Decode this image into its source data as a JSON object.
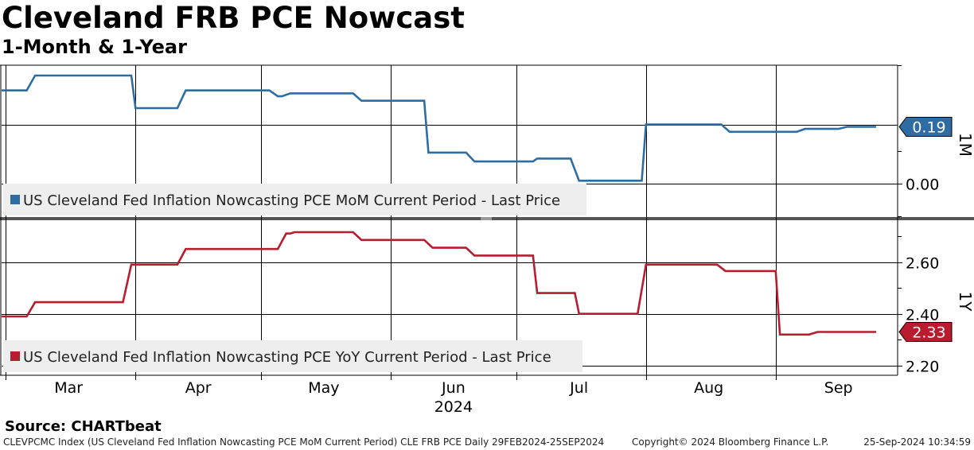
{
  "chart": {
    "title": "Cleveland FRB PCE Nowcast",
    "subtitle": "1-Month & 1-Year",
    "source": "Source: CHARTbeat"
  },
  "footer": {
    "left": "CLEVPCMC Index (US Cleveland Fed Inflation Nowcasting PCE MoM Current Period) CLE FRB PCE  Daily 29FEB2024-25SEP2024",
    "center": "Copyright© 2024 Bloomberg Finance L.P.",
    "right": "25-Sep-2024 10:34:59"
  },
  "colors": {
    "mom": "#2e6da4",
    "yoy": "#b81c2e",
    "grid": "#000000",
    "legend_bg": "#eeeeee"
  },
  "chart_data": [
    {
      "type": "line",
      "panel_label": "1M",
      "legend": "US Cleveland Fed Inflation Nowcasting PCE MoM Current Period - Last Price",
      "last_value_label": "0.19",
      "y_ticks": [
        "0.00"
      ],
      "y_tick_values": [
        0.0
      ],
      "ylim": [
        -0.11,
        0.4
      ],
      "x_start": "2024-02-29",
      "x_end": "2024-09-25",
      "points": [
        [
          "2024-02-29",
          0.315
        ],
        [
          "2024-03-06",
          0.315
        ],
        [
          "2024-03-08",
          0.365
        ],
        [
          "2024-03-31",
          0.365
        ],
        [
          "2024-04-01",
          0.255
        ],
        [
          "2024-04-11",
          0.255
        ],
        [
          "2024-04-13",
          0.315
        ],
        [
          "2024-05-03",
          0.315
        ],
        [
          "2024-05-05",
          0.295
        ],
        [
          "2024-05-06",
          0.295
        ],
        [
          "2024-05-08",
          0.305
        ],
        [
          "2024-05-23",
          0.305
        ],
        [
          "2024-05-25",
          0.28
        ],
        [
          "2024-06-09",
          0.28
        ],
        [
          "2024-06-10",
          0.105
        ],
        [
          "2024-06-19",
          0.105
        ],
        [
          "2024-06-21",
          0.075
        ],
        [
          "2024-07-05",
          0.075
        ],
        [
          "2024-07-06",
          0.085
        ],
        [
          "2024-07-14",
          0.085
        ],
        [
          "2024-07-16",
          0.01
        ],
        [
          "2024-07-31",
          0.01
        ],
        [
          "2024-08-01",
          0.2
        ],
        [
          "2024-08-19",
          0.2
        ],
        [
          "2024-08-21",
          0.175
        ],
        [
          "2024-09-06",
          0.175
        ],
        [
          "2024-09-08",
          0.185
        ],
        [
          "2024-09-16",
          0.185
        ],
        [
          "2024-09-18",
          0.192
        ],
        [
          "2024-09-25",
          0.192
        ]
      ]
    },
    {
      "type": "line",
      "panel_label": "1Y",
      "legend": "US Cleveland Fed Inflation Nowcasting PCE YoY Current Period - Last Price",
      "last_value_label": "2.33",
      "y_ticks": [
        "2.20",
        "2.40",
        "2.60"
      ],
      "y_tick_values": [
        2.2,
        2.4,
        2.6
      ],
      "ylim": [
        2.163,
        2.758
      ],
      "x_start": "2024-02-29",
      "x_end": "2024-09-25",
      "points": [
        [
          "2024-02-29",
          2.39
        ],
        [
          "2024-03-06",
          2.39
        ],
        [
          "2024-03-08",
          2.445
        ],
        [
          "2024-03-29",
          2.445
        ],
        [
          "2024-03-31",
          2.59
        ],
        [
          "2024-04-11",
          2.59
        ],
        [
          "2024-04-13",
          2.65
        ],
        [
          "2024-05-05",
          2.65
        ],
        [
          "2024-05-07",
          2.71
        ],
        [
          "2024-05-08",
          2.71
        ],
        [
          "2024-05-09",
          2.715
        ],
        [
          "2024-05-23",
          2.715
        ],
        [
          "2024-05-25",
          2.685
        ],
        [
          "2024-06-09",
          2.685
        ],
        [
          "2024-06-11",
          2.655
        ],
        [
          "2024-06-19",
          2.655
        ],
        [
          "2024-06-21",
          2.625
        ],
        [
          "2024-07-05",
          2.625
        ],
        [
          "2024-07-06",
          2.48
        ],
        [
          "2024-07-15",
          2.48
        ],
        [
          "2024-07-16",
          2.4
        ],
        [
          "2024-07-30",
          2.4
        ],
        [
          "2024-08-01",
          2.59
        ],
        [
          "2024-08-18",
          2.59
        ],
        [
          "2024-08-20",
          2.565
        ],
        [
          "2024-09-01",
          2.565
        ],
        [
          "2024-09-02",
          2.32
        ],
        [
          "2024-09-09",
          2.32
        ],
        [
          "2024-09-11",
          2.33
        ],
        [
          "2024-09-25",
          2.33
        ]
      ]
    }
  ],
  "x_axis": {
    "months": [
      {
        "label": "Mar",
        "date": "2024-03-16"
      },
      {
        "label": "Apr",
        "date": "2024-04-16"
      },
      {
        "label": "May",
        "date": "2024-05-16"
      },
      {
        "label": "Jun",
        "date": "2024-06-16"
      },
      {
        "label": "Jul",
        "date": "2024-07-16"
      },
      {
        "label": "Aug",
        "date": "2024-08-16"
      },
      {
        "label": "Sep",
        "date": "2024-09-16"
      }
    ],
    "gridlines": [
      "2024-03-01",
      "2024-04-01",
      "2024-05-01",
      "2024-06-01",
      "2024-07-01",
      "2024-08-01",
      "2024-09-01"
    ],
    "year_label": "2024",
    "year_under": "Jun"
  }
}
